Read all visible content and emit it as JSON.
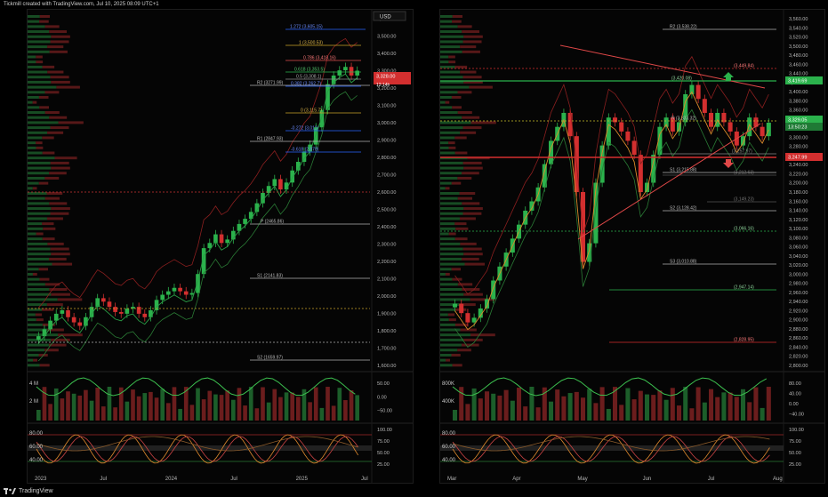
{
  "header": "Tickmill created with TradingView.com, Jul 10, 2025 08:09 UTC+1",
  "footer": "TradingView",
  "colors": {
    "up": "#2bb24c",
    "down": "#d32f2f",
    "bg": "#000000",
    "accent": "#2962ff"
  },
  "left": {
    "currency_badge": "USD",
    "price_badge": "3,328.00",
    "price_badge_sub": "12:14h",
    "y_ticks": [
      "3,600.00",
      "3,500.00",
      "3,400.00",
      "3,300.00",
      "3,200.00",
      "3,100.00",
      "3,000.00",
      "2,900.00",
      "2,800.00",
      "2,700.00",
      "2,600.00",
      "2,500.00",
      "2,400.00",
      "2,300.00",
      "2,200.00",
      "2,100.00",
      "2,000.00",
      "1,900.00",
      "1,800.00",
      "1,700.00",
      "1,600.00"
    ],
    "x_ticks": [
      "2023",
      "Jul",
      "2024",
      "Jul",
      "2025",
      "Jul"
    ],
    "fib_labels": [
      "1.272 (3,605.15)",
      "1 (3,500.53)",
      "0.786 (3,418.16)",
      "0.618 (3,353.5)",
      "0.5 (3,308.1)",
      "0.382 (3,262.7)",
      "0 (3,115.7)",
      "-0.272 (3,011)",
      "-0.618 (2,878)"
    ],
    "pivot_labels": [
      "R2 (3271.99)",
      "R1 (2847.93)",
      "P (2465.86)",
      "S1 (2141.83)",
      "S2 (1659.97)"
    ],
    "volume_ticks": [
      "4 M",
      "2 M"
    ],
    "volume_right_ticks": [
      "50.00",
      "0.00",
      "−50.00"
    ],
    "osc_ticks": [
      "80.00",
      "60.00",
      "40.00"
    ],
    "osc_right_ticks": [
      "100.00",
      "75.00",
      "50.00",
      "25.00"
    ]
  },
  "right": {
    "y_ticks": [
      "3,560.00",
      "3,540.00",
      "3,520.00",
      "3,500.00",
      "3,480.00",
      "3,460.00",
      "3,440.00",
      "3,420.00",
      "3,400.00",
      "3,380.00",
      "3,360.00",
      "3,340.00",
      "3,320.00",
      "3,300.00",
      "3,280.00",
      "3,260.00",
      "3,240.00",
      "3,220.00",
      "3,200.00",
      "3,180.00",
      "3,160.00",
      "3,140.00",
      "3,120.00",
      "3,100.00",
      "3,080.00",
      "3,060.00",
      "3,040.00",
      "3,020.00",
      "3,000.00",
      "2,980.00",
      "2,960.00",
      "2,940.00",
      "2,920.00",
      "2,900.00",
      "2,880.00",
      "2,860.00",
      "2,840.00",
      "2,820.00",
      "2,800.00"
    ],
    "x_ticks": [
      "Mar",
      "Apr",
      "May",
      "Jun",
      "Jul",
      "Aug"
    ],
    "level_labels": [
      "R2 (3,538.22)",
      "(3,449.84)",
      "(3,420.08)",
      "R (3,333.32)",
      "(3,257.97)",
      "S1 (3,215.88)",
      "(3,212.63)",
      "(3,149.23)",
      "S2 (3,128.42)",
      "(3,066.16)",
      "S3 (3,010.88)",
      "(2,947.14)",
      "(2,828.95)"
    ],
    "price_badges": [
      "3,419.69",
      "3,329.05",
      "13:50:23",
      "3,247.99"
    ],
    "volume_ticks": [
      "800K",
      "400K"
    ],
    "volume_right_ticks": [
      "80.00",
      "40.00",
      "0.00",
      "−40.00"
    ],
    "osc_ticks": [
      "80.00",
      "60.00",
      "40.00"
    ],
    "osc_right_ticks": [
      "100.00",
      "75.00",
      "50.00",
      "25.00"
    ]
  },
  "chart_data": [
    {
      "type": "candlestick",
      "title": "",
      "panel": "left",
      "x_range": [
        "2022-11",
        "2025-07"
      ],
      "ylim": [
        1600,
        3650
      ],
      "series": [
        {
          "name": "",
          "values": [
            1790,
            1830,
            1880,
            1920,
            1940,
            1900,
            1870,
            1850,
            1900,
            1960,
            2010,
            1990,
            1960,
            1930,
            1920,
            1950,
            1960,
            1920,
            1900,
            1940,
            2000,
            2030,
            2050,
            2070,
            2050,
            2030,
            2040,
            2150,
            2300,
            2330,
            2380,
            2330,
            2350,
            2400,
            2440,
            2470,
            2510,
            2560,
            2620,
            2660,
            2700,
            2640,
            2680,
            2750,
            2800,
            2860,
            2900,
            3000,
            3100,
            3250,
            3300,
            3330,
            3350,
            3300,
            3328
          ]
        }
      ]
    },
    {
      "type": "candlestick",
      "title": "",
      "panel": "right",
      "x_range": [
        "2025-02",
        "2025-07"
      ],
      "ylim": [
        2800,
        3560
      ],
      "series": [
        {
          "name": "",
          "values": [
            2940,
            2920,
            2900,
            2910,
            2930,
            2950,
            2990,
            3020,
            3050,
            3080,
            3110,
            3140,
            3160,
            3190,
            3240,
            3290,
            3320,
            3350,
            3300,
            3180,
            3030,
            3070,
            3200,
            3280,
            3340,
            3330,
            3310,
            3290,
            3260,
            3180,
            3200,
            3260,
            3320,
            3340,
            3310,
            3330,
            3390,
            3410,
            3380,
            3350,
            3320,
            3350,
            3330,
            3310,
            3280,
            3300,
            3340,
            3320,
            3300,
            3329
          ]
        }
      ]
    }
  ]
}
